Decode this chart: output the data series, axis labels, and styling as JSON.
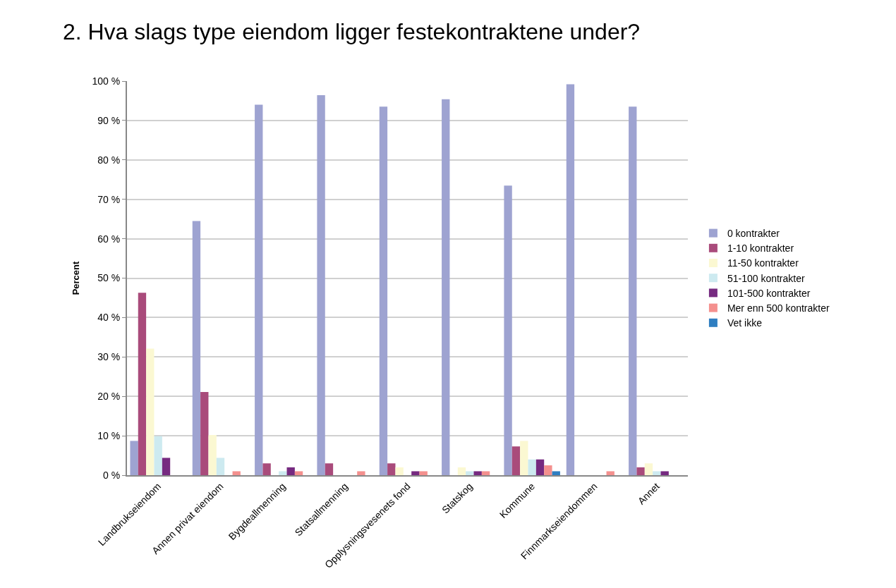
{
  "chart_data": {
    "type": "bar",
    "title": "2. Hva slags type eiendom ligger festekontraktene under?",
    "ylabel": "Percent",
    "categories": [
      "Landbrukseiendom",
      "Annen privat eiendom",
      "Bygdeallmenning",
      "Statsallmenning",
      "Opplysningsvesenets fond",
      "Statskog",
      "Kommune",
      "Finnmarkseiendommen",
      "Annet"
    ],
    "series": [
      {
        "name": "0 kontrakter",
        "color": "#9ea3d1",
        "values": [
          8.7,
          64.5,
          94,
          96.4,
          93.5,
          95.4,
          73.5,
          99.2,
          93.5
        ]
      },
      {
        "name": "1-10 kontrakter",
        "color": "#a94b7b",
        "values": [
          46.3,
          21.1,
          3,
          3,
          3,
          0,
          7.3,
          0,
          2
        ]
      },
      {
        "name": "11-50 kontrakter",
        "color": "#fbf8d2",
        "values": [
          32.1,
          10.2,
          0,
          0,
          2,
          2,
          8.7,
          0,
          3
        ]
      },
      {
        "name": "51-100 kontrakter",
        "color": "#cdeaf0",
        "values": [
          9.9,
          4.4,
          1,
          0,
          0,
          1,
          4,
          0,
          1
        ]
      },
      {
        "name": "101-500 kontrakter",
        "color": "#762a80",
        "values": [
          4.4,
          0,
          2,
          0,
          1,
          1,
          4,
          0,
          1
        ]
      },
      {
        "name": "Mer enn 500 kontrakter",
        "color": "#f4908e",
        "values": [
          0,
          1,
          1,
          1,
          1,
          1,
          2.5,
          1,
          0
        ]
      },
      {
        "name": "Vet ikke",
        "color": "#2f7ec1",
        "values": [
          0,
          0,
          0,
          0,
          0,
          0,
          1,
          0,
          0
        ]
      }
    ],
    "ylim": [
      0,
      100
    ],
    "yticks": [
      {
        "value": 0,
        "label": "0 %"
      },
      {
        "value": 10,
        "label": "10 %"
      },
      {
        "value": 20,
        "label": "20 %"
      },
      {
        "value": 30,
        "label": "30 %"
      },
      {
        "value": 40,
        "label": "40 %"
      },
      {
        "value": 50,
        "label": "50 %"
      },
      {
        "value": 60,
        "label": "60 %"
      },
      {
        "value": 70,
        "label": "70 %"
      },
      {
        "value": 80,
        "label": "80 %"
      },
      {
        "value": 90,
        "label": "90 %"
      },
      {
        "value": 100,
        "label": "100 %"
      }
    ],
    "grid": "y",
    "legend": "right"
  }
}
